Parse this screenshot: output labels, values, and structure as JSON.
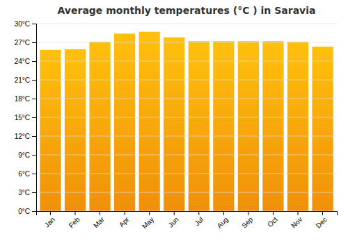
{
  "chart_data": {
    "type": "bar",
    "title": "Average monthly temperatures (°C ) in Saravia",
    "categories": [
      "Jan",
      "Feb",
      "Mar",
      "Apr",
      "May",
      "Jun",
      "Jul",
      "Aug",
      "Sep",
      "Oct",
      "Nov",
      "Dec"
    ],
    "values": [
      25.8,
      25.9,
      27.1,
      28.4,
      28.7,
      27.8,
      27.2,
      27.2,
      27.2,
      27.2,
      27.1,
      26.3
    ],
    "color": "#F0900A",
    "ylim": [
      0,
      30
    ],
    "yticks": [
      {
        "value": 0,
        "label": "0°C"
      },
      {
        "value": 3,
        "label": "3°C"
      },
      {
        "value": 6,
        "label": "6°C"
      },
      {
        "value": 9,
        "label": "9°C"
      },
      {
        "value": 12,
        "label": "12°C"
      },
      {
        "value": 15,
        "label": "15°C"
      },
      {
        "value": 18,
        "label": "18°C"
      },
      {
        "value": 21,
        "label": "21°C"
      },
      {
        "value": 24,
        "label": "24°C"
      },
      {
        "value": 27,
        "label": "27°C"
      },
      {
        "value": 30,
        "label": "30°C"
      }
    ],
    "grid": true
  }
}
